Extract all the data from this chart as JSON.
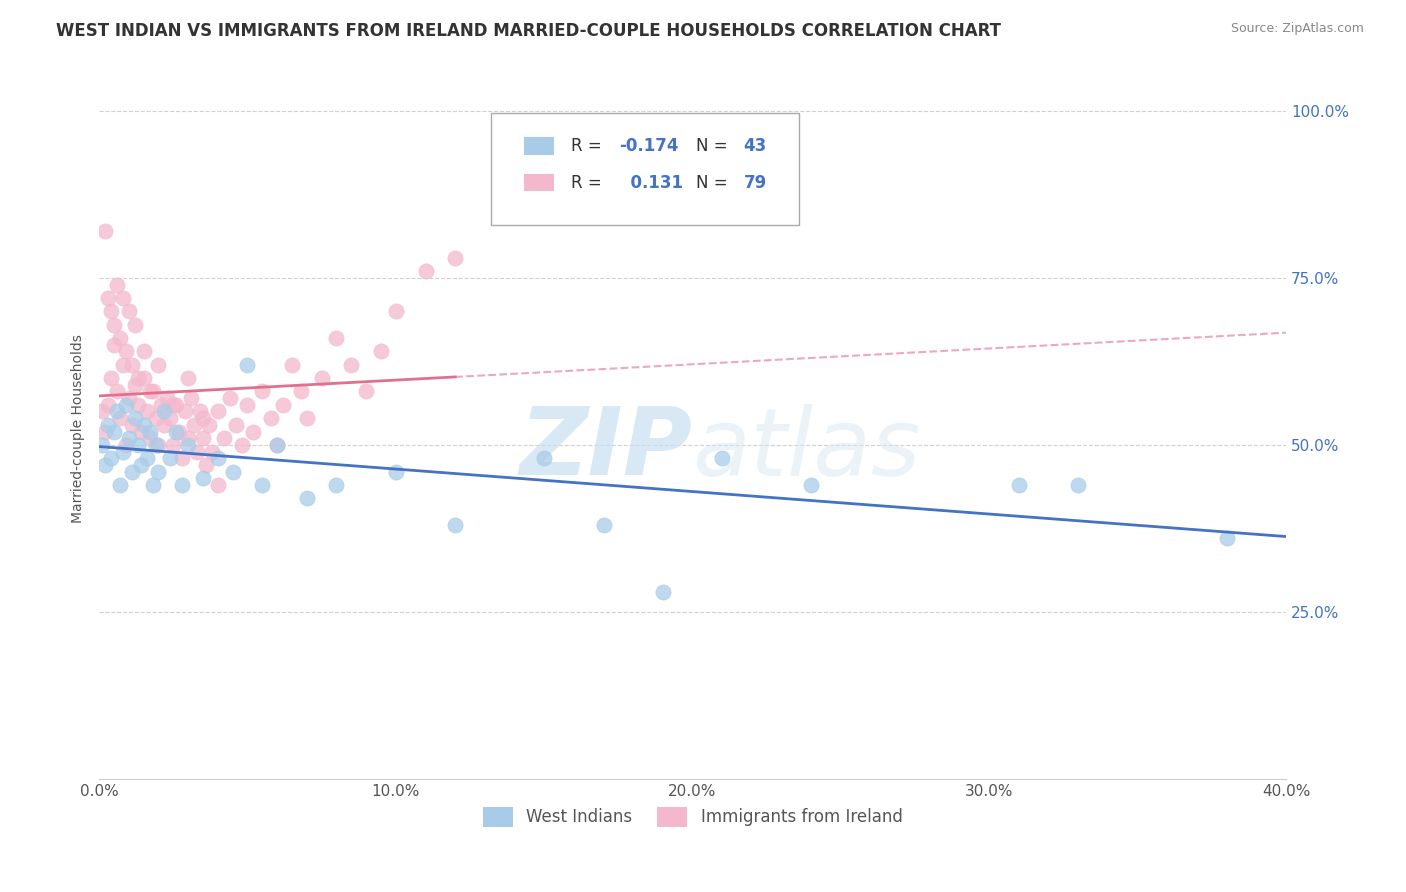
{
  "title": "WEST INDIAN VS IMMIGRANTS FROM IRELAND MARRIED-COUPLE HOUSEHOLDS CORRELATION CHART",
  "source": "Source: ZipAtlas.com",
  "ylabel_label": "Married-couple Households",
  "xlim": [
    0.0,
    0.4
  ],
  "ylim": [
    0.0,
    1.05
  ],
  "xtick_labels": [
    "0.0%",
    "10.0%",
    "20.0%",
    "30.0%",
    "40.0%"
  ],
  "xtick_values": [
    0.0,
    0.1,
    0.2,
    0.3,
    0.4
  ],
  "ytick_labels": [
    "25.0%",
    "50.0%",
    "75.0%",
    "100.0%"
  ],
  "ytick_values": [
    0.25,
    0.5,
    0.75,
    1.0
  ],
  "west_indians_color": "#a8cce8",
  "immigrants_ireland_color": "#f4b8cc",
  "west_indians_line_color": "#4472c4",
  "immigrants_ireland_line_color": "#e07090",
  "tick_color": "#4472c4",
  "R_west": -0.174,
  "N_west": 43,
  "R_ireland": 0.131,
  "N_ireland": 79,
  "west_indians_x": [
    0.001,
    0.002,
    0.003,
    0.004,
    0.005,
    0.006,
    0.007,
    0.008,
    0.009,
    0.01,
    0.011,
    0.012,
    0.013,
    0.014,
    0.015,
    0.016,
    0.017,
    0.018,
    0.019,
    0.02,
    0.022,
    0.024,
    0.026,
    0.028,
    0.03,
    0.035,
    0.04,
    0.045,
    0.05,
    0.055,
    0.06,
    0.07,
    0.08,
    0.1,
    0.12,
    0.15,
    0.17,
    0.19,
    0.21,
    0.24,
    0.31,
    0.33,
    0.38
  ],
  "west_indians_y": [
    0.5,
    0.47,
    0.53,
    0.48,
    0.52,
    0.55,
    0.44,
    0.49,
    0.56,
    0.51,
    0.46,
    0.54,
    0.5,
    0.47,
    0.53,
    0.48,
    0.52,
    0.44,
    0.5,
    0.46,
    0.55,
    0.48,
    0.52,
    0.44,
    0.5,
    0.45,
    0.48,
    0.46,
    0.62,
    0.44,
    0.5,
    0.42,
    0.44,
    0.46,
    0.38,
    0.48,
    0.38,
    0.28,
    0.48,
    0.44,
    0.44,
    0.44,
    0.36
  ],
  "immigrants_ireland_x": [
    0.001,
    0.002,
    0.003,
    0.004,
    0.005,
    0.006,
    0.007,
    0.008,
    0.009,
    0.01,
    0.011,
    0.012,
    0.013,
    0.014,
    0.015,
    0.016,
    0.017,
    0.018,
    0.019,
    0.02,
    0.021,
    0.022,
    0.023,
    0.024,
    0.025,
    0.026,
    0.027,
    0.028,
    0.029,
    0.03,
    0.031,
    0.032,
    0.033,
    0.034,
    0.035,
    0.036,
    0.037,
    0.038,
    0.04,
    0.042,
    0.044,
    0.046,
    0.048,
    0.05,
    0.052,
    0.055,
    0.058,
    0.06,
    0.062,
    0.065,
    0.068,
    0.07,
    0.075,
    0.08,
    0.085,
    0.09,
    0.095,
    0.1,
    0.11,
    0.12,
    0.002,
    0.003,
    0.004,
    0.005,
    0.006,
    0.007,
    0.008,
    0.009,
    0.01,
    0.011,
    0.012,
    0.013,
    0.015,
    0.017,
    0.02,
    0.025,
    0.03,
    0.035,
    0.04
  ],
  "immigrants_ireland_y": [
    0.55,
    0.52,
    0.56,
    0.6,
    0.65,
    0.58,
    0.54,
    0.62,
    0.5,
    0.57,
    0.53,
    0.59,
    0.56,
    0.52,
    0.6,
    0.55,
    0.51,
    0.58,
    0.54,
    0.5,
    0.56,
    0.53,
    0.57,
    0.54,
    0.5,
    0.56,
    0.52,
    0.48,
    0.55,
    0.51,
    0.57,
    0.53,
    0.49,
    0.55,
    0.51,
    0.47,
    0.53,
    0.49,
    0.55,
    0.51,
    0.57,
    0.53,
    0.5,
    0.56,
    0.52,
    0.58,
    0.54,
    0.5,
    0.56,
    0.62,
    0.58,
    0.54,
    0.6,
    0.66,
    0.62,
    0.58,
    0.64,
    0.7,
    0.76,
    0.78,
    0.82,
    0.72,
    0.7,
    0.68,
    0.74,
    0.66,
    0.72,
    0.64,
    0.7,
    0.62,
    0.68,
    0.6,
    0.64,
    0.58,
    0.62,
    0.56,
    0.6,
    0.54,
    0.44
  ],
  "watermark_zip": "ZIP",
  "watermark_atlas": "atlas",
  "background_color": "#ffffff",
  "grid_color": "#cccccc",
  "title_fontsize": 12,
  "axis_label_fontsize": 10,
  "tick_fontsize": 11,
  "legend_fontsize": 12
}
